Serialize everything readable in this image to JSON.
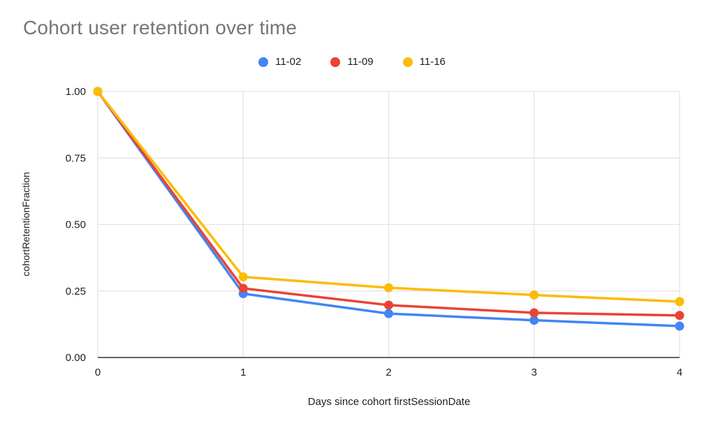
{
  "chart_data": {
    "type": "line",
    "title": "Cohort user retention over time",
    "xlabel": "Days since cohort firstSessionDate",
    "ylabel": "cohortRetentionFraction",
    "x": [
      0,
      1,
      2,
      3,
      4
    ],
    "xtick_labels": [
      "0",
      "1",
      "2",
      "3",
      "4"
    ],
    "xlim": [
      0,
      4
    ],
    "ylim": [
      0,
      1
    ],
    "yticks": [
      0.0,
      0.25,
      0.5,
      0.75,
      1.0
    ],
    "ytick_labels": [
      "0.00",
      "0.25",
      "0.50",
      "0.75",
      "1.00"
    ],
    "grid": true,
    "legend_position": "top-center",
    "series": [
      {
        "name": "11-02",
        "color": "#4285F4",
        "values": [
          1.0,
          0.24,
          0.165,
          0.14,
          0.118
        ]
      },
      {
        "name": "11-09",
        "color": "#EA4335",
        "values": [
          1.0,
          0.26,
          0.197,
          0.168,
          0.158
        ]
      },
      {
        "name": "11-16",
        "color": "#FBBC04",
        "values": [
          1.0,
          0.303,
          0.262,
          0.235,
          0.21
        ]
      }
    ],
    "colors": {
      "gridline": "#e3e3e3",
      "axis_line": "#333333",
      "axis_text": "#202124",
      "title_text": "#757575"
    }
  }
}
